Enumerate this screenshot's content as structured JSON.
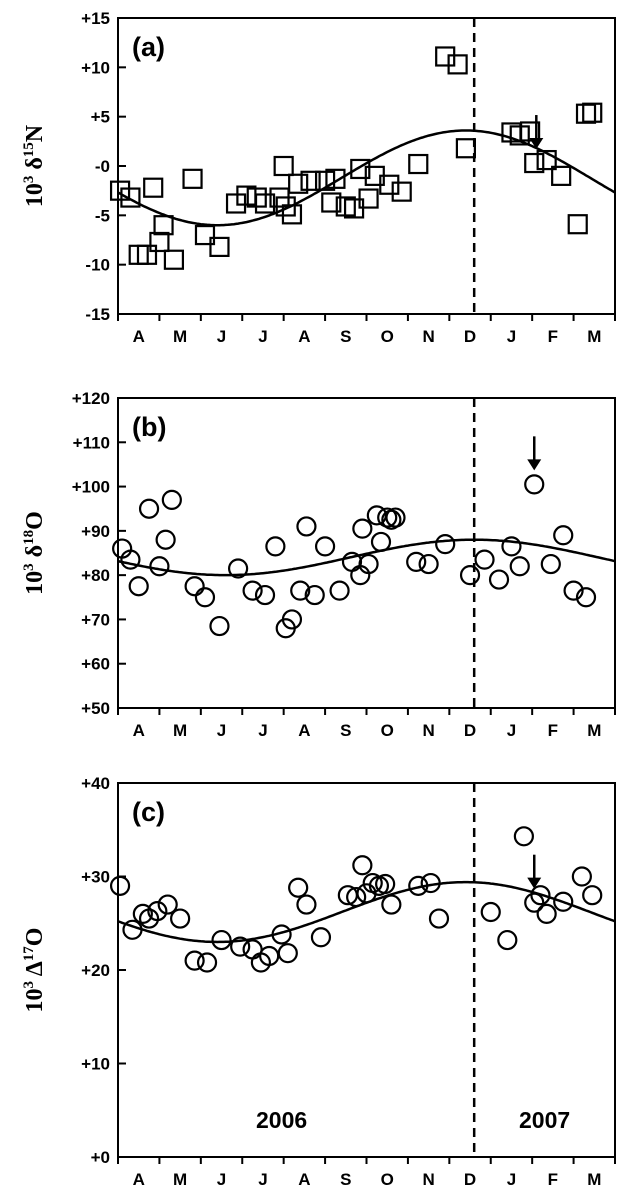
{
  "chart_data": [
    {
      "type": "scatter",
      "panel_label": "(a)",
      "ylabel": {
        "base": "10",
        "exp": "3",
        "symbol": " δ",
        "iso": "15",
        "elem": "N"
      },
      "ylim": [
        -15,
        15
      ],
      "yticks": [
        -15,
        -10,
        -5,
        0,
        5,
        10,
        15
      ],
      "ytick_labels": [
        "-15",
        "-10",
        "-5",
        "-0",
        "+5",
        "+10",
        "+15"
      ],
      "xlim": [
        0,
        12
      ],
      "months": [
        "A",
        "M",
        "J",
        "J",
        "A",
        "S",
        "O",
        "N",
        "D",
        "J",
        "F",
        "M"
      ],
      "marker": "square",
      "divider_x": 8.6,
      "arrow_x": 10.1,
      "fit": {
        "mean": -1.2,
        "amp": 4.8,
        "peak_x": 8.4
      },
      "series": [
        {
          "x": [
            0.05,
            0.3,
            0.5,
            0.7,
            0.85,
            1.0,
            1.1,
            1.35,
            1.8,
            2.1,
            2.45,
            2.85,
            3.1,
            3.35,
            3.55,
            3.9,
            4.0,
            4.05,
            4.2,
            4.35,
            4.65,
            5.0,
            5.15,
            5.25,
            5.5,
            5.7,
            5.85,
            6.05,
            6.2,
            6.55,
            6.85,
            7.25,
            7.9,
            8.2,
            8.4,
            9.5,
            9.7,
            9.95,
            10.05,
            10.35,
            10.7,
            11.1,
            11.3,
            11.45
          ],
          "y": [
            -2.5,
            -3.2,
            -9.0,
            -9.0,
            -2.2,
            -7.7,
            -6.0,
            -9.5,
            -1.3,
            -7.0,
            -8.2,
            -3.8,
            -3.0,
            -3.2,
            -3.8,
            -3.2,
            0.0,
            -4.1,
            -4.9,
            -1.8,
            -1.5,
            -1.5,
            -3.7,
            -1.3,
            -4.1,
            -4.3,
            -0.3,
            -3.3,
            -1.0,
            -1.9,
            -2.6,
            0.2,
            11.1,
            10.3,
            1.8,
            3.4,
            3.1,
            3.5,
            0.3,
            0.6,
            -1.0,
            -5.9,
            5.3,
            5.4
          ]
        }
      ]
    },
    {
      "type": "scatter",
      "panel_label": "(b)",
      "ylabel": {
        "base": "10",
        "exp": "3",
        "symbol": " δ",
        "iso": "18",
        "elem": "O"
      },
      "ylim": [
        50,
        120
      ],
      "yticks": [
        50,
        60,
        70,
        80,
        90,
        100,
        110,
        120
      ],
      "ytick_labels": [
        "+50",
        "+60",
        "+70",
        "+80",
        "+90",
        "+100",
        "+110",
        "+120"
      ],
      "xlim": [
        0,
        12
      ],
      "months": [
        "A",
        "M",
        "J",
        "J",
        "A",
        "S",
        "O",
        "N",
        "D",
        "J",
        "F",
        "M"
      ],
      "marker": "circle",
      "divider_x": 8.6,
      "arrow_x": 10.05,
      "fit": {
        "mean": 84,
        "amp": 4,
        "peak_x": 8.6
      },
      "series": [
        {
          "x": [
            0.1,
            0.3,
            0.5,
            0.75,
            1.0,
            1.15,
            1.3,
            1.85,
            2.1,
            2.45,
            2.9,
            3.25,
            3.55,
            3.8,
            4.05,
            4.2,
            4.4,
            4.55,
            4.75,
            5.0,
            5.35,
            5.65,
            5.85,
            5.9,
            6.05,
            6.25,
            6.35,
            6.5,
            6.6,
            6.7,
            7.2,
            7.5,
            7.9,
            8.5,
            8.85,
            9.2,
            9.5,
            9.7,
            10.05,
            10.45,
            10.75,
            11.0,
            11.3
          ],
          "y": [
            86.0,
            83.5,
            77.5,
            95.0,
            82.0,
            88.0,
            97.0,
            77.5,
            75.0,
            68.5,
            81.5,
            76.5,
            75.5,
            86.5,
            68.0,
            70.0,
            76.5,
            91.0,
            75.5,
            86.5,
            76.5,
            83.0,
            80.0,
            90.5,
            82.5,
            93.5,
            87.5,
            93.0,
            92.5,
            93.0,
            83.0,
            82.5,
            87.0,
            80.0,
            83.5,
            79.0,
            86.5,
            82.0,
            100.5,
            82.5,
            89.0,
            76.5,
            75.0
          ]
        }
      ]
    },
    {
      "type": "scatter",
      "panel_label": "(c)",
      "ylabel": {
        "base": "10",
        "exp": "3",
        "symbol": " Δ",
        "iso": "17",
        "elem": "O"
      },
      "ylim": [
        0,
        40
      ],
      "yticks": [
        0,
        10,
        20,
        30,
        40
      ],
      "ytick_labels": [
        "+0",
        "+10",
        "+20",
        "+30",
        "+40"
      ],
      "xlim": [
        0,
        12
      ],
      "months": [
        "A",
        "M",
        "J",
        "J",
        "A",
        "S",
        "O",
        "N",
        "D",
        "J",
        "F",
        "M"
      ],
      "marker": "circle",
      "divider_x": 8.6,
      "arrow_x": 10.05,
      "year_labels": [
        "2006",
        "2007"
      ],
      "fit": {
        "mean": 26.2,
        "amp": 3.2,
        "peak_x": 8.4
      },
      "series": [
        {
          "x": [
            0.05,
            0.35,
            0.6,
            0.75,
            0.95,
            1.2,
            1.5,
            1.85,
            2.15,
            2.5,
            2.95,
            3.25,
            3.45,
            3.65,
            3.95,
            4.1,
            4.35,
            4.55,
            4.9,
            5.55,
            5.75,
            5.9,
            6.0,
            6.15,
            6.3,
            6.45,
            6.6,
            7.25,
            7.55,
            7.75,
            9.0,
            9.4,
            9.8,
            10.05,
            10.2,
            10.35,
            10.75,
            11.2,
            11.45
          ],
          "y": [
            29.0,
            24.3,
            26.0,
            25.5,
            26.3,
            27.0,
            25.5,
            21.0,
            20.8,
            23.2,
            22.5,
            22.2,
            20.8,
            21.5,
            23.8,
            21.8,
            28.8,
            27.0,
            23.5,
            28.0,
            27.8,
            31.2,
            28.2,
            29.3,
            29.0,
            29.2,
            27.0,
            29.0,
            29.3,
            25.5,
            26.2,
            23.2,
            34.3,
            27.2,
            28.0,
            26.0,
            27.3,
            30.0,
            28.0
          ]
        }
      ]
    }
  ]
}
